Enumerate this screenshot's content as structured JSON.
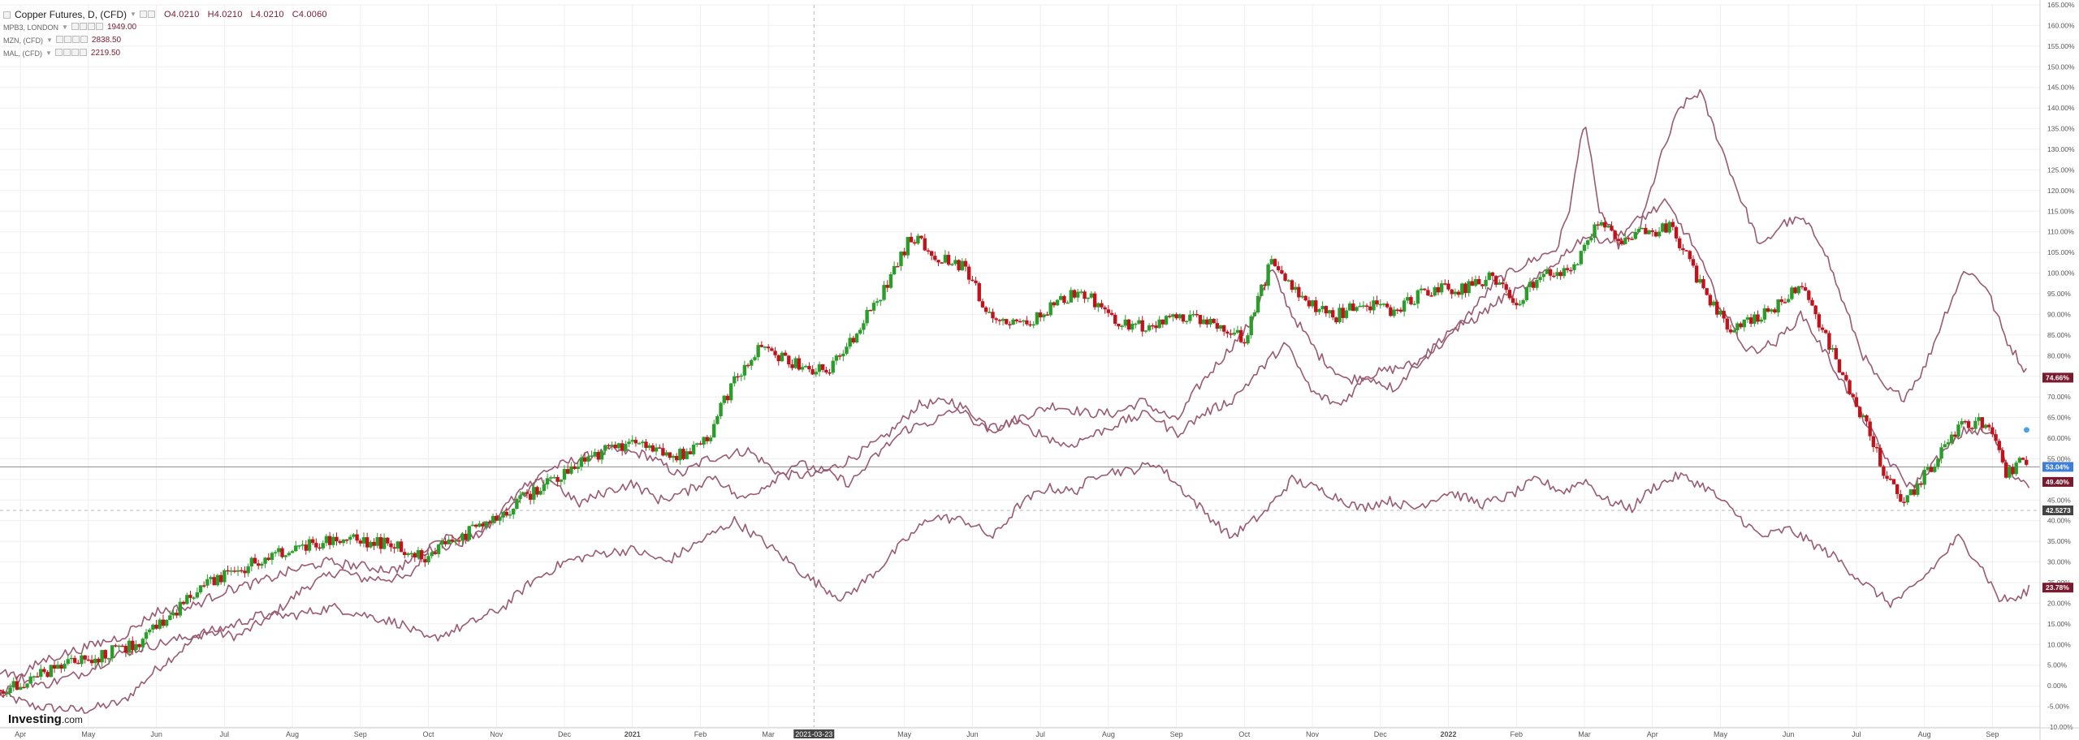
{
  "legend": {
    "main_label": "Copper Futures, D, (CFD)",
    "ohlc": {
      "o": "O4.0210",
      "h": "H4.0210",
      "l": "L4.0210",
      "c": "C4.0060"
    },
    "overlays": [
      {
        "label": "MPB3, LONDON",
        "value": "1949.00"
      },
      {
        "label": "MZN, (CFD)",
        "value": "2838.50"
      },
      {
        "label": "MAL, (CFD)",
        "value": "2219.50"
      }
    ]
  },
  "logo": {
    "bold": "Investing",
    "suffix": ".com"
  },
  "colors": {
    "up": "#2a9d2a",
    "down": "#c0141c",
    "overlay": "#9a5a72",
    "badge_dark": "#7a1a2e",
    "badge_blue": "#3d7fd8",
    "badge_gray": "#444444"
  },
  "chart_data": {
    "type": "line",
    "title": "Copper Futures, D, (CFD)",
    "y_unit": "% change",
    "ylim": [
      -10,
      165
    ],
    "y_ticks": [
      -10,
      -5,
      0,
      5,
      10,
      15,
      20,
      25,
      30,
      35,
      40,
      45,
      50,
      55,
      60,
      65,
      70,
      75,
      80,
      85,
      90,
      95,
      100,
      105,
      110,
      115,
      120,
      125,
      130,
      135,
      140,
      145,
      150,
      155,
      160,
      165
    ],
    "x_ticks": [
      {
        "label": "Apr",
        "m": 0.3
      },
      {
        "label": "May",
        "m": 1.3
      },
      {
        "label": "Jun",
        "m": 2.3
      },
      {
        "label": "Jul",
        "m": 3.3
      },
      {
        "label": "Aug",
        "m": 4.3
      },
      {
        "label": "Sep",
        "m": 5.3
      },
      {
        "label": "Oct",
        "m": 6.3
      },
      {
        "label": "Nov",
        "m": 7.3
      },
      {
        "label": "Dec",
        "m": 8.3
      },
      {
        "label": "2021",
        "m": 9.3,
        "bold": true
      },
      {
        "label": "Feb",
        "m": 10.3
      },
      {
        "label": "Mar",
        "m": 11.3
      },
      {
        "label": "May",
        "m": 13.3
      },
      {
        "label": "Jun",
        "m": 14.3
      },
      {
        "label": "Jul",
        "m": 15.3
      },
      {
        "label": "Aug",
        "m": 16.3
      },
      {
        "label": "Sep",
        "m": 17.3
      },
      {
        "label": "Oct",
        "m": 18.3
      },
      {
        "label": "Nov",
        "m": 19.3
      },
      {
        "label": "Dec",
        "m": 20.3
      },
      {
        "label": "2022",
        "m": 21.3,
        "bold": true
      },
      {
        "label": "Feb",
        "m": 22.3
      },
      {
        "label": "Mar",
        "m": 23.3
      },
      {
        "label": "Apr",
        "m": 24.3
      },
      {
        "label": "May",
        "m": 25.3
      },
      {
        "label": "Jun",
        "m": 26.3
      },
      {
        "label": "Jul",
        "m": 27.3
      },
      {
        "label": "Aug",
        "m": 28.3
      },
      {
        "label": "Sep",
        "m": 29.3
      }
    ],
    "crosshair": {
      "date": "2021-03-23",
      "m": 11.97,
      "y": 42.5
    },
    "current_price_line": 53.04,
    "value_badges": [
      {
        "label": "74.66%",
        "value": 74.66,
        "kind": "dark"
      },
      {
        "label": "53.04%",
        "value": 53.04,
        "kind": "blue"
      },
      {
        "label": "49.40%",
        "value": 49.4,
        "kind": "dark"
      },
      {
        "label": "42.5273",
        "value": 42.5,
        "kind": "gray"
      },
      {
        "label": "23.78%",
        "value": 23.78,
        "kind": "dark"
      }
    ],
    "candles_anchor": [
      [
        0,
        -1
      ],
      [
        1,
        5
      ],
      [
        2,
        10
      ],
      [
        3,
        24
      ],
      [
        4,
        32
      ],
      [
        5,
        36
      ],
      [
        5.8,
        34
      ],
      [
        6.2,
        31
      ],
      [
        7,
        38
      ],
      [
        7.5,
        43
      ],
      [
        8,
        49
      ],
      [
        8.6,
        55
      ],
      [
        9.3,
        59
      ],
      [
        10,
        56
      ],
      [
        10.4,
        60
      ],
      [
        10.8,
        74
      ],
      [
        11.2,
        82
      ],
      [
        11.7,
        78
      ],
      [
        12.2,
        76
      ],
      [
        12.6,
        86
      ],
      [
        13,
        96
      ],
      [
        13.4,
        109
      ],
      [
        13.8,
        104
      ],
      [
        14.2,
        101
      ],
      [
        14.6,
        88
      ],
      [
        15,
        87
      ],
      [
        15.4,
        91
      ],
      [
        15.9,
        96
      ],
      [
        16.4,
        88
      ],
      [
        16.9,
        87
      ],
      [
        17.3,
        89
      ],
      [
        17.8,
        88
      ],
      [
        18.3,
        84
      ],
      [
        18.7,
        103
      ],
      [
        19.1,
        94
      ],
      [
        19.6,
        89
      ],
      [
        20,
        93
      ],
      [
        20.5,
        91
      ],
      [
        21,
        96
      ],
      [
        21.5,
        96
      ],
      [
        21.9,
        99
      ],
      [
        22.3,
        93
      ],
      [
        22.7,
        100
      ],
      [
        23.1,
        100
      ],
      [
        23.5,
        113
      ],
      [
        23.8,
        107
      ],
      [
        24.2,
        110
      ],
      [
        24.6,
        111
      ],
      [
        25,
        97
      ],
      [
        25.4,
        87
      ],
      [
        25.8,
        89
      ],
      [
        26.2,
        93
      ],
      [
        26.5,
        98
      ],
      [
        26.8,
        86
      ],
      [
        27.1,
        75
      ],
      [
        27.4,
        65
      ],
      [
        27.7,
        52
      ],
      [
        28,
        44
      ],
      [
        28.4,
        53
      ],
      [
        28.8,
        63
      ],
      [
        29.2,
        64
      ],
      [
        29.5,
        52
      ],
      [
        29.85,
        55
      ]
    ],
    "series": [
      {
        "kind": "overlay",
        "anchors": [
          [
            0,
            -2
          ],
          [
            0.5,
            -5
          ],
          [
            1.2,
            -6
          ],
          [
            1.8,
            -4
          ],
          [
            2.3,
            4
          ],
          [
            3,
            13
          ],
          [
            3.5,
            12
          ],
          [
            4,
            17
          ],
          [
            4.5,
            24
          ],
          [
            5,
            28
          ],
          [
            5.3,
            26
          ],
          [
            6,
            26
          ],
          [
            6.4,
            36
          ],
          [
            7,
            36
          ],
          [
            7.5,
            43
          ],
          [
            8,
            52
          ],
          [
            8.5,
            55
          ],
          [
            9,
            57
          ],
          [
            9.5,
            56
          ],
          [
            10,
            51
          ],
          [
            10.4,
            55
          ],
          [
            11,
            57
          ],
          [
            11.5,
            51
          ],
          [
            12,
            51
          ],
          [
            12.4,
            54
          ],
          [
            13,
            60
          ],
          [
            13.5,
            68
          ],
          [
            14,
            69
          ],
          [
            14.3,
            66
          ],
          [
            14.6,
            62
          ],
          [
            15,
            65
          ],
          [
            15.5,
            68
          ],
          [
            16,
            66
          ],
          [
            16.4,
            66
          ],
          [
            16.8,
            69
          ],
          [
            17.3,
            64
          ],
          [
            17.6,
            72
          ],
          [
            18,
            80
          ],
          [
            18.4,
            88
          ],
          [
            18.7,
            101
          ],
          [
            19,
            90
          ],
          [
            19.4,
            80
          ],
          [
            19.8,
            74
          ],
          [
            20.3,
            76
          ],
          [
            20.8,
            78
          ],
          [
            21.3,
            84
          ],
          [
            21.7,
            92
          ],
          [
            22,
            98
          ],
          [
            22.4,
            102
          ],
          [
            22.9,
            106
          ],
          [
            23.1,
            117
          ],
          [
            23.3,
            138
          ],
          [
            23.5,
            116
          ],
          [
            23.8,
            107
          ],
          [
            24.1,
            110
          ],
          [
            24.4,
            127
          ],
          [
            24.7,
            140
          ],
          [
            25,
            144
          ],
          [
            25.3,
            131
          ],
          [
            25.6,
            118
          ],
          [
            25.9,
            106
          ],
          [
            26.2,
            112
          ],
          [
            26.5,
            113
          ],
          [
            26.8,
            107
          ],
          [
            27.1,
            93
          ],
          [
            27.4,
            80
          ],
          [
            27.7,
            72
          ],
          [
            28,
            70
          ],
          [
            28.3,
            77
          ],
          [
            28.6,
            90
          ],
          [
            28.9,
            101
          ],
          [
            29.2,
            97
          ],
          [
            29.5,
            84
          ],
          [
            29.8,
            76
          ]
        ]
      },
      {
        "kind": "overlay",
        "anchors": [
          [
            0,
            4
          ],
          [
            0.6,
            0
          ],
          [
            1.2,
            3
          ],
          [
            1.8,
            8
          ],
          [
            2.3,
            10
          ],
          [
            2.8,
            12
          ],
          [
            3.3,
            14
          ],
          [
            3.8,
            17
          ],
          [
            4.3,
            17
          ],
          [
            4.9,
            19
          ],
          [
            5.4,
            17
          ],
          [
            5.9,
            15
          ],
          [
            6.3,
            11
          ],
          [
            6.9,
            15
          ],
          [
            7.4,
            19
          ],
          [
            7.8,
            25
          ],
          [
            8.3,
            30
          ],
          [
            8.8,
            32
          ],
          [
            9.3,
            33
          ],
          [
            9.8,
            30
          ],
          [
            10.3,
            35
          ],
          [
            10.8,
            40
          ],
          [
            11.3,
            34
          ],
          [
            11.6,
            30
          ],
          [
            11.9,
            26
          ],
          [
            12.4,
            21
          ],
          [
            12.9,
            28
          ],
          [
            13.3,
            35
          ],
          [
            13.7,
            41
          ],
          [
            14.2,
            40
          ],
          [
            14.6,
            36
          ],
          [
            15,
            44
          ],
          [
            15.4,
            48
          ],
          [
            15.8,
            47
          ],
          [
            16.2,
            52
          ],
          [
            16.6,
            52
          ],
          [
            17,
            54
          ],
          [
            17.6,
            44
          ],
          [
            18.1,
            36
          ],
          [
            18.6,
            42
          ],
          [
            19,
            50
          ],
          [
            19.5,
            47
          ],
          [
            20,
            43
          ],
          [
            20.4,
            45
          ],
          [
            20.8,
            43
          ],
          [
            21.3,
            47
          ],
          [
            21.8,
            44
          ],
          [
            22.2,
            46
          ],
          [
            22.6,
            50
          ],
          [
            23,
            47
          ],
          [
            23.3,
            50
          ],
          [
            23.6,
            45
          ],
          [
            24,
            43
          ],
          [
            24.3,
            48
          ],
          [
            24.7,
            51
          ],
          [
            25.1,
            48
          ],
          [
            25.5,
            42
          ],
          [
            25.9,
            36
          ],
          [
            26.3,
            38
          ],
          [
            26.6,
            35
          ],
          [
            27,
            31
          ],
          [
            27.4,
            25
          ],
          [
            27.8,
            20
          ],
          [
            28.1,
            23
          ],
          [
            28.5,
            30
          ],
          [
            28.8,
            36
          ],
          [
            29.1,
            30
          ],
          [
            29.4,
            21
          ],
          [
            29.7,
            21
          ],
          [
            29.85,
            24
          ]
        ]
      },
      {
        "kind": "overlay",
        "anchors": [
          [
            0,
            -2
          ],
          [
            0.6,
            6
          ],
          [
            1.2,
            9
          ],
          [
            1.8,
            12
          ],
          [
            2.3,
            18
          ],
          [
            2.8,
            19
          ],
          [
            3.3,
            23
          ],
          [
            3.8,
            25
          ],
          [
            4.3,
            28
          ],
          [
            4.8,
            30
          ],
          [
            5.3,
            29
          ],
          [
            5.8,
            28
          ],
          [
            6.3,
            33
          ],
          [
            6.8,
            35
          ],
          [
            7.3,
            41
          ],
          [
            7.7,
            48
          ],
          [
            8.1,
            50
          ],
          [
            8.5,
            44
          ],
          [
            8.9,
            47
          ],
          [
            9.3,
            49
          ],
          [
            9.7,
            45
          ],
          [
            10.1,
            47
          ],
          [
            10.5,
            51
          ],
          [
            10.9,
            45
          ],
          [
            11.3,
            49
          ],
          [
            11.7,
            54
          ],
          [
            12.1,
            52
          ],
          [
            12.5,
            49
          ],
          [
            12.9,
            56
          ],
          [
            13.3,
            62
          ],
          [
            13.7,
            64
          ],
          [
            14.1,
            67
          ],
          [
            14.5,
            62
          ],
          [
            14.9,
            64
          ],
          [
            15.3,
            61
          ],
          [
            15.7,
            58
          ],
          [
            16.1,
            61
          ],
          [
            16.5,
            64
          ],
          [
            16.9,
            66
          ],
          [
            17.3,
            61
          ],
          [
            17.7,
            66
          ],
          [
            18.1,
            69
          ],
          [
            18.5,
            76
          ],
          [
            18.9,
            83
          ],
          [
            19.3,
            71
          ],
          [
            19.7,
            68
          ],
          [
            20.1,
            75
          ],
          [
            20.5,
            72
          ],
          [
            20.9,
            79
          ],
          [
            21.3,
            86
          ],
          [
            21.7,
            89
          ],
          [
            22.1,
            94
          ],
          [
            22.5,
            97
          ],
          [
            22.9,
            103
          ],
          [
            23.3,
            109
          ],
          [
            23.7,
            108
          ],
          [
            24.1,
            113
          ],
          [
            24.5,
            117
          ],
          [
            24.9,
            107
          ],
          [
            25.3,
            92
          ],
          [
            25.7,
            81
          ],
          [
            26.1,
            83
          ],
          [
            26.5,
            90
          ],
          [
            26.9,
            79
          ],
          [
            27.3,
            68
          ],
          [
            27.7,
            56
          ],
          [
            28.1,
            48
          ],
          [
            28.5,
            55
          ],
          [
            28.9,
            62
          ],
          [
            29.3,
            61
          ],
          [
            29.6,
            51
          ],
          [
            29.85,
            49
          ]
        ]
      }
    ]
  }
}
